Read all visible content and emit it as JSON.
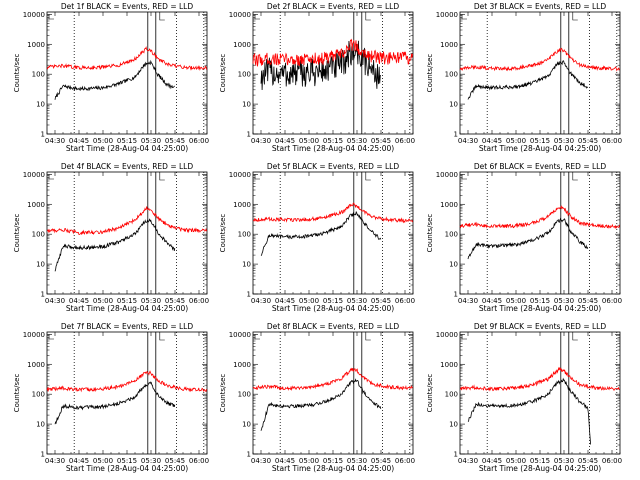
{
  "shared": {
    "ylabel": "Counts/sec",
    "xlabel": "Start Time (28-Aug-04 04:25:00)",
    "x_ticks": [
      "04:30",
      "04:45",
      "05:00",
      "05:15",
      "05:30",
      "05:45",
      "06:00"
    ],
    "y_ticks": [
      "1",
      "10",
      "100",
      "1000",
      "10000"
    ],
    "colors": {
      "events": "#000000",
      "lld": "#ff0000"
    }
  },
  "chart_data": [
    {
      "type": "line",
      "title": "Det 1f BLACK = Events, RED = LLD",
      "x_range": [
        "04:25",
        "06:05"
      ],
      "ylim": [
        1,
        12000
      ],
      "y_scale": "log",
      "dotted_vlines": [
        "04:42",
        "05:46",
        "06:03"
      ],
      "solid_vlines": [
        "05:28",
        "05:33"
      ],
      "series": [
        {
          "name": "BLACK = Events",
          "x": [
            "04:30",
            "04:35",
            "04:45",
            "05:00",
            "05:10",
            "05:20",
            "05:26",
            "05:30",
            "05:34",
            "05:40",
            "05:45"
          ],
          "values": [
            15,
            40,
            32,
            35,
            48,
            80,
            210,
            250,
            100,
            45,
            35
          ]
        },
        {
          "name": "RED = LLD",
          "x": [
            "04:25",
            "04:35",
            "04:45",
            "05:00",
            "05:10",
            "05:20",
            "05:27",
            "05:30",
            "05:34",
            "05:40",
            "05:50",
            "06:05"
          ],
          "values": [
            170,
            190,
            165,
            170,
            200,
            320,
            700,
            600,
            350,
            210,
            170,
            160
          ]
        }
      ]
    },
    {
      "type": "line",
      "title": "Det 2f BLACK = Events, RED = LLD",
      "x_range": [
        "04:25",
        "06:05"
      ],
      "ylim": [
        1,
        12000
      ],
      "y_scale": "log",
      "dotted_vlines": [
        "04:42",
        "05:46",
        "06:03"
      ],
      "solid_vlines": [
        "05:28",
        "05:33"
      ],
      "series": [
        {
          "name": "BLACK = Events",
          "x": [
            "04:30",
            "04:35",
            "04:45",
            "05:00",
            "05:10",
            "05:20",
            "05:26",
            "05:30",
            "05:34",
            "05:40",
            "05:45"
          ],
          "values": [
            80,
            120,
            100,
            110,
            130,
            200,
            500,
            600,
            300,
            130,
            70
          ]
        },
        {
          "name": "RED = LLD",
          "x": [
            "04:25",
            "04:35",
            "04:45",
            "05:00",
            "05:10",
            "05:20",
            "05:27",
            "05:30",
            "05:34",
            "05:40",
            "05:50",
            "06:05"
          ],
          "values": [
            280,
            330,
            300,
            320,
            340,
            450,
            1000,
            800,
            550,
            380,
            330,
            350
          ]
        }
      ]
    },
    {
      "type": "line",
      "title": "Det 3f BLACK = Events, RED = LLD",
      "x_range": [
        "04:25",
        "06:05"
      ],
      "ylim": [
        1,
        12000
      ],
      "y_scale": "log",
      "dotted_vlines": [
        "04:42",
        "05:46",
        "06:03"
      ],
      "solid_vlines": [
        "05:28",
        "05:33"
      ],
      "series": [
        {
          "name": "BLACK = Events",
          "x": [
            "04:30",
            "04:35",
            "04:45",
            "05:00",
            "05:10",
            "05:20",
            "05:26",
            "05:30",
            "05:34",
            "05:40",
            "05:45"
          ],
          "values": [
            15,
            40,
            35,
            38,
            50,
            85,
            230,
            250,
            110,
            50,
            38
          ]
        },
        {
          "name": "RED = LLD",
          "x": [
            "04:25",
            "04:35",
            "04:45",
            "05:00",
            "05:10",
            "05:20",
            "05:27",
            "05:30",
            "05:34",
            "05:40",
            "05:50",
            "06:05"
          ],
          "values": [
            150,
            175,
            155,
            160,
            190,
            300,
            680,
            600,
            340,
            200,
            160,
            150
          ]
        }
      ]
    },
    {
      "type": "line",
      "title": "Det 4f BLACK = Events, RED = LLD",
      "x_range": [
        "04:25",
        "06:05"
      ],
      "ylim": [
        1,
        12000
      ],
      "y_scale": "log",
      "dotted_vlines": [
        "04:42",
        "05:46",
        "06:03"
      ],
      "solid_vlines": [
        "05:28",
        "05:33"
      ],
      "series": [
        {
          "name": "BLACK = Events",
          "x": [
            "04:30",
            "04:35",
            "04:45",
            "05:00",
            "05:10",
            "05:20",
            "05:26",
            "05:30",
            "05:34",
            "05:40",
            "05:45"
          ],
          "values": [
            6,
            40,
            35,
            38,
            55,
            100,
            250,
            280,
            120,
            50,
            30
          ]
        },
        {
          "name": "RED = LLD",
          "x": [
            "04:25",
            "04:35",
            "04:45",
            "05:00",
            "05:10",
            "05:20",
            "05:27",
            "05:30",
            "05:34",
            "05:40",
            "05:50",
            "06:05"
          ],
          "values": [
            130,
            140,
            110,
            120,
            160,
            300,
            750,
            650,
            360,
            200,
            140,
            130
          ]
        }
      ]
    },
    {
      "type": "line",
      "title": "Det 5f BLACK = Events, RED = LLD",
      "x_range": [
        "04:25",
        "06:05"
      ],
      "ylim": [
        1,
        12000
      ],
      "y_scale": "log",
      "dotted_vlines": [
        "04:42",
        "05:46",
        "06:03"
      ],
      "solid_vlines": [
        "05:28",
        "05:33"
      ],
      "series": [
        {
          "name": "BLACK = Events",
          "x": [
            "04:30",
            "04:35",
            "04:45",
            "05:00",
            "05:10",
            "05:20",
            "05:26",
            "05:30",
            "05:34",
            "05:40",
            "05:45"
          ],
          "values": [
            20,
            90,
            80,
            85,
            110,
            180,
            420,
            500,
            250,
            110,
            65
          ]
        },
        {
          "name": "RED = LLD",
          "x": [
            "04:25",
            "04:35",
            "04:45",
            "05:00",
            "05:10",
            "05:20",
            "05:27",
            "05:30",
            "05:34",
            "05:40",
            "05:50",
            "06:05"
          ],
          "values": [
            300,
            320,
            300,
            310,
            360,
            520,
            1000,
            900,
            560,
            380,
            300,
            280
          ]
        }
      ]
    },
    {
      "type": "line",
      "title": "Det 6f BLACK = Events, RED = LLD",
      "x_range": [
        "04:25",
        "06:05"
      ],
      "ylim": [
        1,
        12000
      ],
      "y_scale": "log",
      "dotted_vlines": [
        "04:42",
        "05:46",
        "06:03"
      ],
      "solid_vlines": [
        "05:28",
        "05:33"
      ],
      "series": [
        {
          "name": "BLACK = Events",
          "x": [
            "04:30",
            "04:35",
            "04:45",
            "05:00",
            "05:10",
            "05:20",
            "05:26",
            "05:30",
            "05:34",
            "05:40",
            "05:45"
          ],
          "values": [
            15,
            45,
            40,
            45,
            60,
            110,
            280,
            300,
            130,
            55,
            35
          ]
        },
        {
          "name": "RED = LLD",
          "x": [
            "04:25",
            "04:35",
            "04:45",
            "05:00",
            "05:10",
            "05:20",
            "05:27",
            "05:30",
            "05:34",
            "05:40",
            "05:50",
            "06:05"
          ],
          "values": [
            190,
            210,
            180,
            190,
            230,
            380,
            800,
            700,
            400,
            240,
            190,
            180
          ]
        }
      ]
    },
    {
      "type": "line",
      "title": "Det 7f BLACK = Events, RED = LLD",
      "x_range": [
        "04:25",
        "06:05"
      ],
      "ylim": [
        1,
        12000
      ],
      "y_scale": "log",
      "dotted_vlines": [
        "04:42",
        "05:46",
        "06:03"
      ],
      "solid_vlines": [
        "05:28",
        "05:33"
      ],
      "series": [
        {
          "name": "BLACK = Events",
          "x": [
            "04:30",
            "04:35",
            "04:45",
            "05:00",
            "05:10",
            "05:20",
            "05:26",
            "05:30",
            "05:34",
            "05:40",
            "05:45"
          ],
          "values": [
            10,
            40,
            35,
            38,
            50,
            80,
            200,
            230,
            100,
            50,
            40
          ]
        },
        {
          "name": "RED = LLD",
          "x": [
            "04:25",
            "04:35",
            "04:45",
            "05:00",
            "05:10",
            "05:20",
            "05:27",
            "05:30",
            "05:34",
            "05:40",
            "05:50",
            "06:05"
          ],
          "values": [
            140,
            160,
            140,
            150,
            180,
            280,
            550,
            500,
            300,
            190,
            150,
            140
          ]
        }
      ]
    },
    {
      "type": "line",
      "title": "Det 8f BLACK = Events, RED = LLD",
      "x_range": [
        "04:25",
        "06:05"
      ],
      "ylim": [
        1,
        12000
      ],
      "y_scale": "log",
      "dotted_vlines": [
        "04:42",
        "05:46",
        "06:03"
      ],
      "solid_vlines": [
        "05:28",
        "05:33"
      ],
      "series": [
        {
          "name": "BLACK = Events",
          "x": [
            "04:30",
            "04:35",
            "04:45",
            "05:00",
            "05:10",
            "05:20",
            "05:26",
            "05:30",
            "05:34",
            "05:40",
            "05:45"
          ],
          "values": [
            6,
            45,
            40,
            42,
            55,
            100,
            250,
            280,
            120,
            55,
            32
          ]
        },
        {
          "name": "RED = LLD",
          "x": [
            "04:25",
            "04:35",
            "04:45",
            "05:00",
            "05:10",
            "05:20",
            "05:27",
            "05:30",
            "05:34",
            "05:40",
            "05:50",
            "06:05"
          ],
          "values": [
            160,
            180,
            160,
            170,
            210,
            330,
            700,
            620,
            360,
            220,
            170,
            160
          ]
        }
      ]
    },
    {
      "type": "line",
      "title": "Det 9f BLACK = Events, RED = LLD",
      "x_range": [
        "04:25",
        "06:05"
      ],
      "ylim": [
        1,
        12000
      ],
      "y_scale": "log",
      "dotted_vlines": [
        "04:42",
        "05:46",
        "06:03"
      ],
      "solid_vlines": [
        "05:28",
        "05:33"
      ],
      "series": [
        {
          "name": "BLACK = Events",
          "x": [
            "04:30",
            "04:35",
            "04:45",
            "05:00",
            "05:10",
            "05:20",
            "05:26",
            "05:30",
            "05:34",
            "05:40",
            "05:45",
            "05:47"
          ],
          "values": [
            12,
            45,
            40,
            42,
            55,
            100,
            250,
            300,
            130,
            55,
            35,
            1
          ]
        },
        {
          "name": "RED = LLD",
          "x": [
            "04:25",
            "04:35",
            "04:45",
            "05:00",
            "05:10",
            "05:20",
            "05:27",
            "05:30",
            "05:34",
            "05:40",
            "05:50",
            "06:05"
          ],
          "values": [
            150,
            170,
            150,
            160,
            200,
            320,
            700,
            600,
            340,
            210,
            160,
            150
          ]
        }
      ]
    }
  ]
}
